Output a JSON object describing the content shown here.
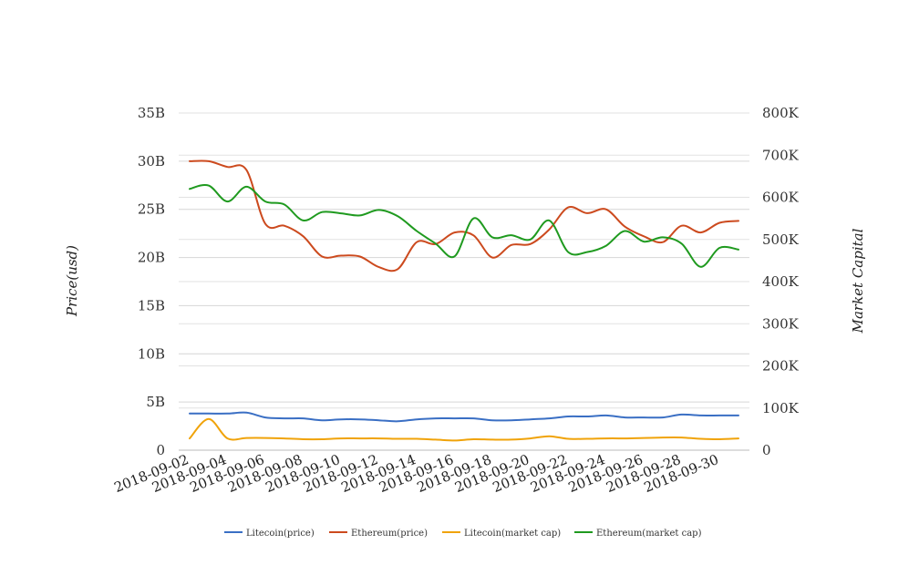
{
  "chart_data": {
    "type": "line",
    "title": "",
    "xlabel": "",
    "ylabel": "Price(usd)",
    "ylabel_right": "Market Capital",
    "x": [
      "2018-09-02",
      "2018-09-03",
      "2018-09-04",
      "2018-09-05",
      "2018-09-06",
      "2018-09-07",
      "2018-09-08",
      "2018-09-09",
      "2018-09-10",
      "2018-09-11",
      "2018-09-12",
      "2018-09-13",
      "2018-09-14",
      "2018-09-15",
      "2018-09-16",
      "2018-09-17",
      "2018-09-18",
      "2018-09-19",
      "2018-09-20",
      "2018-09-21",
      "2018-09-22",
      "2018-09-23",
      "2018-09-24",
      "2018-09-25",
      "2018-09-26",
      "2018-09-27",
      "2018-09-28",
      "2018-09-29",
      "2018-09-30",
      "2018-10-01"
    ],
    "x_tick_labels": [
      "2018-09-02",
      "2018-09-04",
      "2018-09-06",
      "2018-09-08",
      "2018-09-10",
      "2018-09-12",
      "2018-09-14",
      "2018-09-16",
      "2018-09-18",
      "2018-09-20",
      "2018-09-22",
      "2018-09-24",
      "2018-09-26",
      "2018-09-28",
      "2018-09-30"
    ],
    "y_left": {
      "ylim": [
        0,
        35
      ],
      "ticks": [
        0,
        5,
        10,
        15,
        20,
        25,
        30,
        35
      ],
      "tick_labels": [
        "0",
        "5B",
        "10B",
        "15B",
        "20B",
        "25B",
        "30B",
        "35B"
      ]
    },
    "y_right": {
      "ylim": [
        0,
        800
      ],
      "ticks": [
        0,
        100,
        200,
        300,
        400,
        500,
        600,
        700,
        800
      ],
      "tick_labels": [
        "0",
        "100K",
        "200K",
        "300K",
        "400K",
        "500K",
        "600K",
        "700K",
        "800K"
      ]
    },
    "grid": true,
    "legend_position": "bottom",
    "series": [
      {
        "name": "Litecoin(price)",
        "axis": "left",
        "color": "#3a6fc4",
        "values": [
          3.8,
          3.8,
          3.8,
          3.9,
          3.4,
          3.3,
          3.3,
          3.1,
          3.2,
          3.2,
          3.1,
          3.0,
          3.2,
          3.3,
          3.3,
          3.3,
          3.1,
          3.1,
          3.2,
          3.3,
          3.5,
          3.5,
          3.6,
          3.4,
          3.4,
          3.4,
          3.7,
          3.6,
          3.6,
          3.6
        ]
      },
      {
        "name": "Ethereum(price)",
        "axis": "left",
        "color": "#cc4a1e",
        "values": [
          30.0,
          30.0,
          29.4,
          29.1,
          23.5,
          23.3,
          22.2,
          20.1,
          20.2,
          20.1,
          19.0,
          18.8,
          21.6,
          21.4,
          22.6,
          22.3,
          20.0,
          21.3,
          21.4,
          22.9,
          25.2,
          24.6,
          25.0,
          23.2,
          22.2,
          21.6,
          23.3,
          22.6,
          23.6,
          23.8
        ]
      },
      {
        "name": "Litecoin(market cap)",
        "axis": "right",
        "color": "#f0a30a",
        "values": [
          28,
          74,
          28,
          29,
          29,
          28,
          26,
          26,
          28,
          28,
          28,
          27,
          27,
          25,
          23,
          26,
          25,
          25,
          28,
          33,
          27,
          27,
          28,
          28,
          29,
          30,
          30,
          27,
          26,
          28
        ]
      },
      {
        "name": "Ethereum(market cap)",
        "axis": "right",
        "color": "#1f9a1f",
        "values": [
          620,
          628,
          590,
          625,
          590,
          583,
          545,
          565,
          562,
          557,
          570,
          555,
          520,
          490,
          460,
          550,
          505,
          510,
          500,
          545,
          470,
          470,
          485,
          520,
          495,
          505,
          490,
          435,
          480,
          476
        ]
      }
    ]
  }
}
